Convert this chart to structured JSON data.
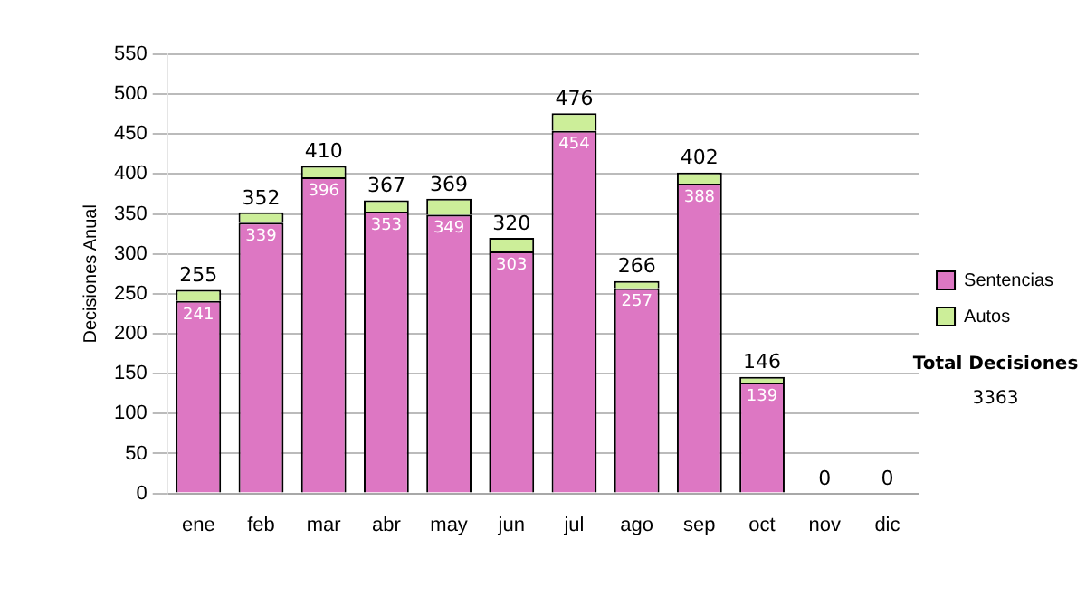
{
  "chart_data": {
    "type": "bar",
    "ylabel": "Decisiones Anual",
    "categories": [
      "ene",
      "feb",
      "mar",
      "abr",
      "may",
      "jun",
      "jul",
      "ago",
      "sep",
      "oct",
      "nov",
      "dic"
    ],
    "stacked": true,
    "ylim": [
      0,
      550
    ],
    "yticks": [
      0,
      50,
      100,
      150,
      200,
      250,
      300,
      350,
      400,
      450,
      500,
      550
    ],
    "grid": "y",
    "legend": "right",
    "series": [
      {
        "name": "Sentencias",
        "color": "#dd77c3",
        "values": [
          241,
          339,
          396,
          353,
          349,
          303,
          454,
          257,
          388,
          139,
          0,
          0
        ],
        "value_labels": [
          "241",
          "339",
          "396",
          "353",
          "349",
          "303",
          "454",
          "257",
          "388",
          "139",
          null,
          null
        ]
      },
      {
        "name": "Autos",
        "color": "#ccee99",
        "values": [
          14,
          13,
          14,
          14,
          20,
          17,
          22,
          9,
          14,
          7,
          0,
          0
        ]
      }
    ],
    "totals": [
      "255",
      "352",
      "410",
      "367",
      "369",
      "320",
      "476",
      "266",
      "402",
      "146",
      "0",
      "0"
    ],
    "annotations": [
      "Total Decisiones",
      "3363"
    ]
  }
}
